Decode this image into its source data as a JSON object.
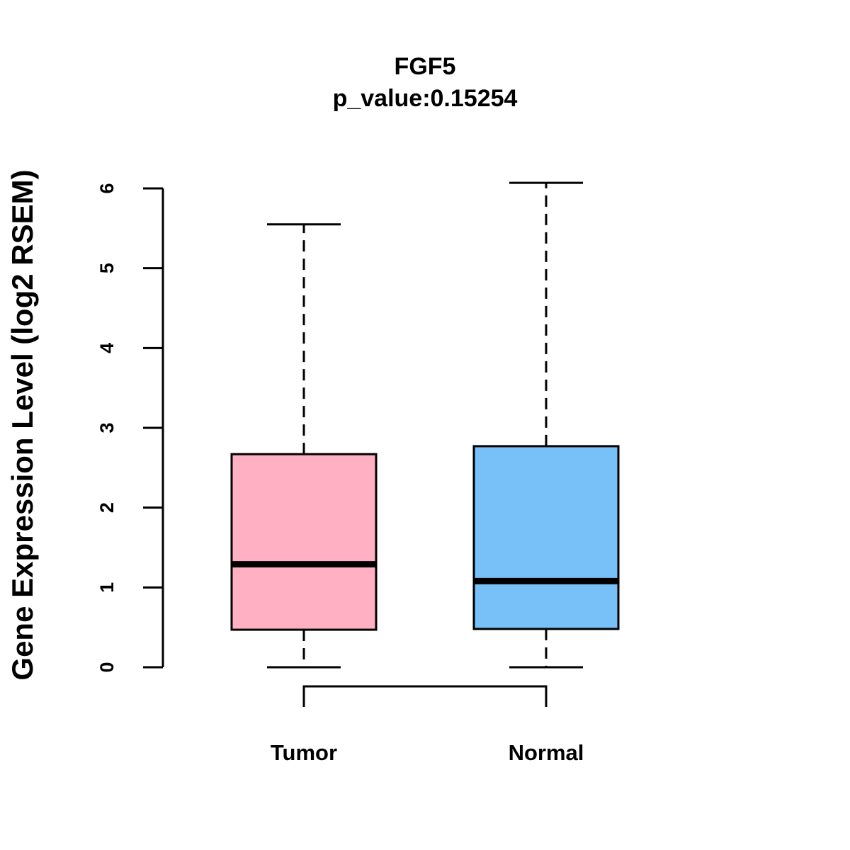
{
  "chart_data": {
    "type": "box",
    "title": "FGF5",
    "subtitle": "p_value:0.15254",
    "ylabel": "Gene Expression Level (log2 RSEM)",
    "xlabel": "",
    "ylim": [
      0,
      6
    ],
    "yticks": [
      0,
      1,
      2,
      3,
      4,
      5,
      6
    ],
    "ytick_labels": [
      "0",
      "1",
      "2",
      "3",
      "4",
      "5",
      "6"
    ],
    "categories": [
      "Tumor",
      "Normal"
    ],
    "series": [
      {
        "name": "Tumor",
        "min": 0,
        "q1": 0.47,
        "median": 1.29,
        "q3": 2.67,
        "max": 5.55,
        "color": "#FFB0C3"
      },
      {
        "name": "Normal",
        "min": 0,
        "q1": 0.48,
        "median": 1.08,
        "q3": 2.77,
        "max": 6.07,
        "color": "#78C0F8"
      }
    ],
    "comparison_bracket": [
      "Tumor",
      "Normal"
    ],
    "grid": false
  }
}
